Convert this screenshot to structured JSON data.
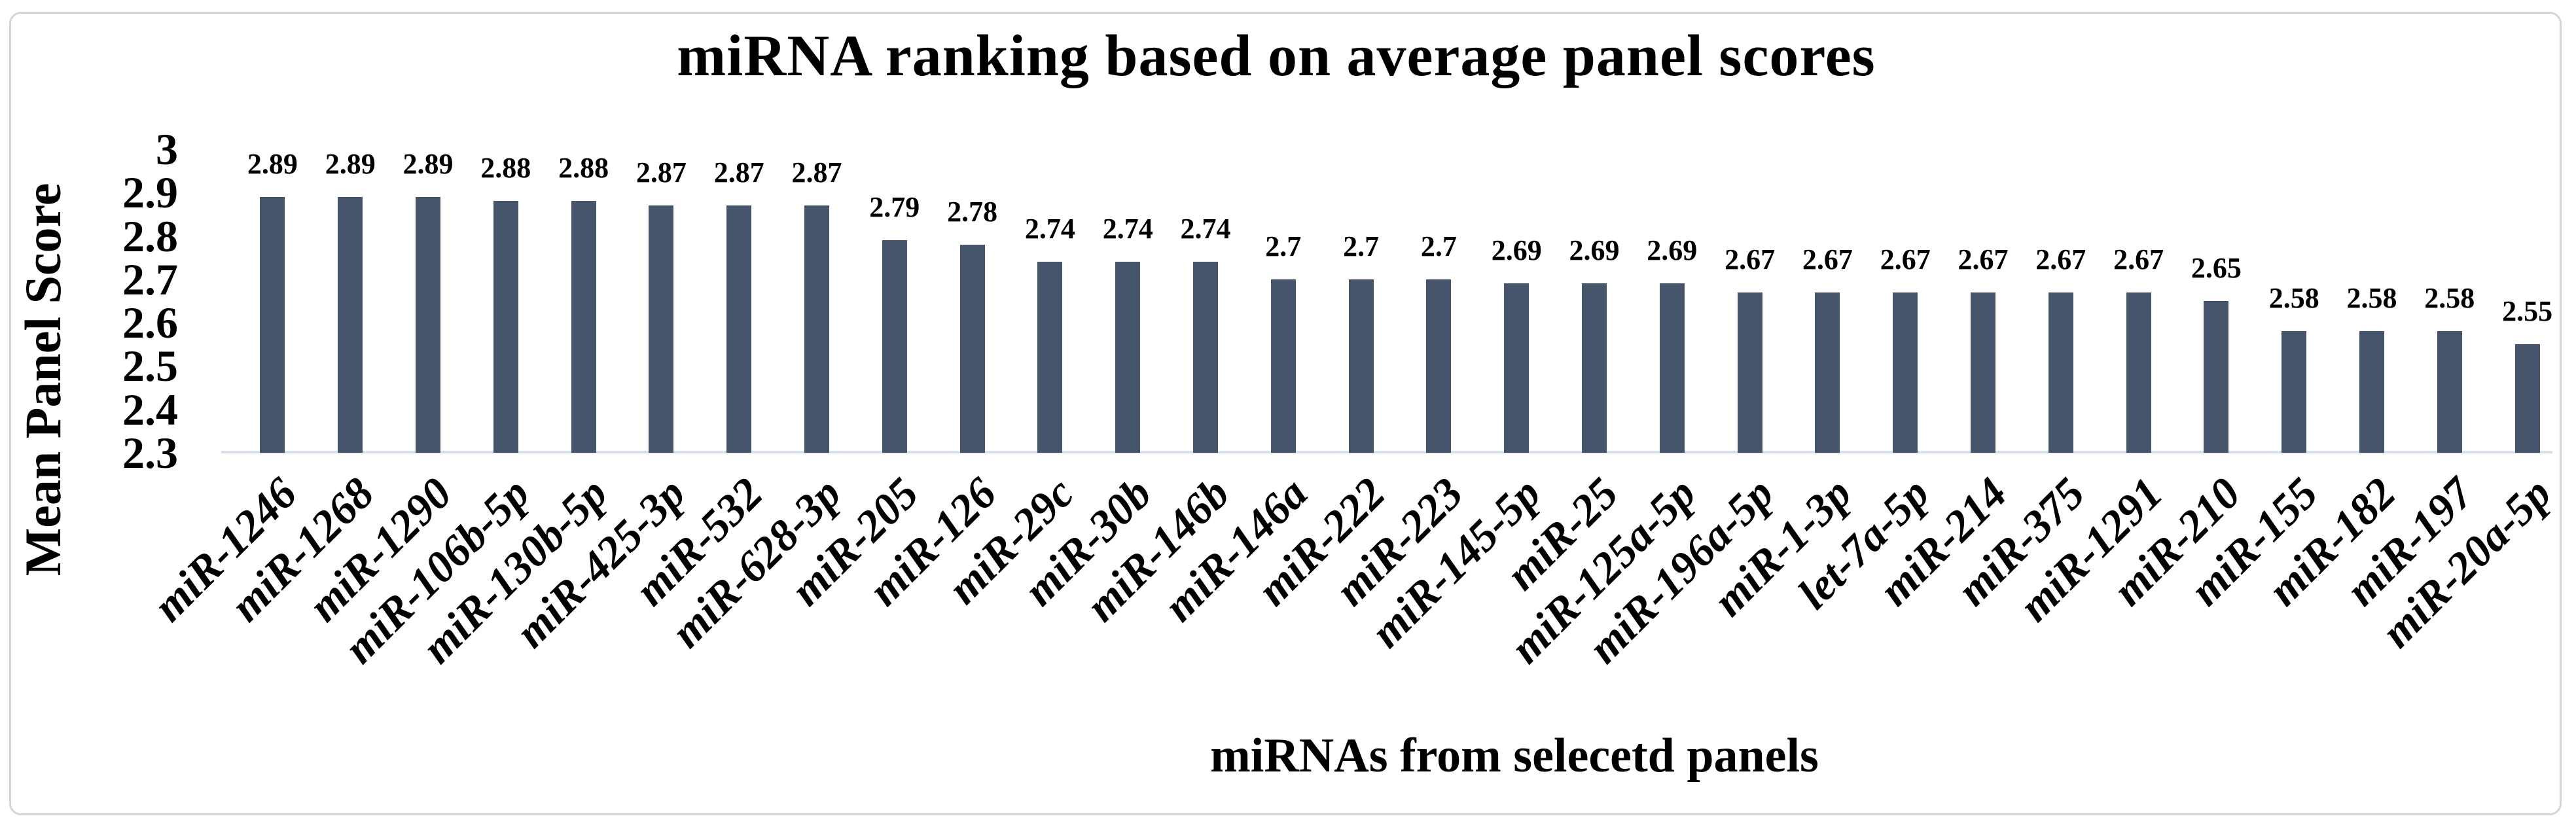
{
  "frame": {
    "border_color": "#d2d6da",
    "background_color": "#ffffff"
  },
  "chart_data": {
    "type": "bar",
    "title": "miRNA ranking based on average panel scores",
    "xlabel": "miRNAs from selecetd panels",
    "ylabel": "Mean Panel Score",
    "ylim": [
      2.3,
      3
    ],
    "grid": false,
    "legend": "none",
    "bar_color": "#46546C",
    "axis_line_color": "#dbe1e8",
    "text_color": "#000000",
    "yticks": [
      {
        "label": "3",
        "value": 3.0
      },
      {
        "label": "2.9",
        "value": 2.9
      },
      {
        "label": "2.8",
        "value": 2.8
      },
      {
        "label": "2.7",
        "value": 2.7
      },
      {
        "label": "2.6",
        "value": 2.6
      },
      {
        "label": "2.5",
        "value": 2.5
      },
      {
        "label": "2.4",
        "value": 2.4
      },
      {
        "label": "2.3",
        "value": 2.3
      }
    ],
    "categories": [
      "miR-1246",
      "miR-1268",
      "miR-1290",
      "miR-106b-5p",
      "miR-130b-5p",
      "miR-425-3p",
      "miR-532",
      "miR-628-3p",
      "miR-205",
      "miR-126",
      "miR-29c",
      "miR-30b",
      "miR-146b",
      "miR-146a",
      "miR-222",
      "miR-223",
      "miR-145-5p",
      "miR-25",
      "miR-125a-5p",
      "miR-196a-5p",
      "miR-1-3p",
      "let-7a-5p",
      "miR-214",
      "miR-375",
      "miR-1291",
      "miR-210",
      "miR-155",
      "miR-182",
      "miR-197",
      "miR-20a-5p"
    ],
    "values": [
      2.89,
      2.89,
      2.89,
      2.88,
      2.88,
      2.87,
      2.87,
      2.87,
      2.79,
      2.78,
      2.74,
      2.74,
      2.74,
      2.7,
      2.7,
      2.7,
      2.69,
      2.69,
      2.69,
      2.67,
      2.67,
      2.67,
      2.67,
      2.67,
      2.67,
      2.65,
      2.58,
      2.58,
      2.58,
      2.55
    ],
    "value_labels": [
      "2.89",
      "2.89",
      "2.89",
      "2.88",
      "2.88",
      "2.87",
      "2.87",
      "2.87",
      "2.79",
      "2.78",
      "2.74",
      "2.74",
      "2.74",
      "2.7",
      "2.7",
      "2.7",
      "2.69",
      "2.69",
      "2.69",
      "2.67",
      "2.67",
      "2.67",
      "2.67",
      "2.67",
      "2.67",
      "2.65",
      "2.58",
      "2.58",
      "2.58",
      "2.55"
    ]
  }
}
